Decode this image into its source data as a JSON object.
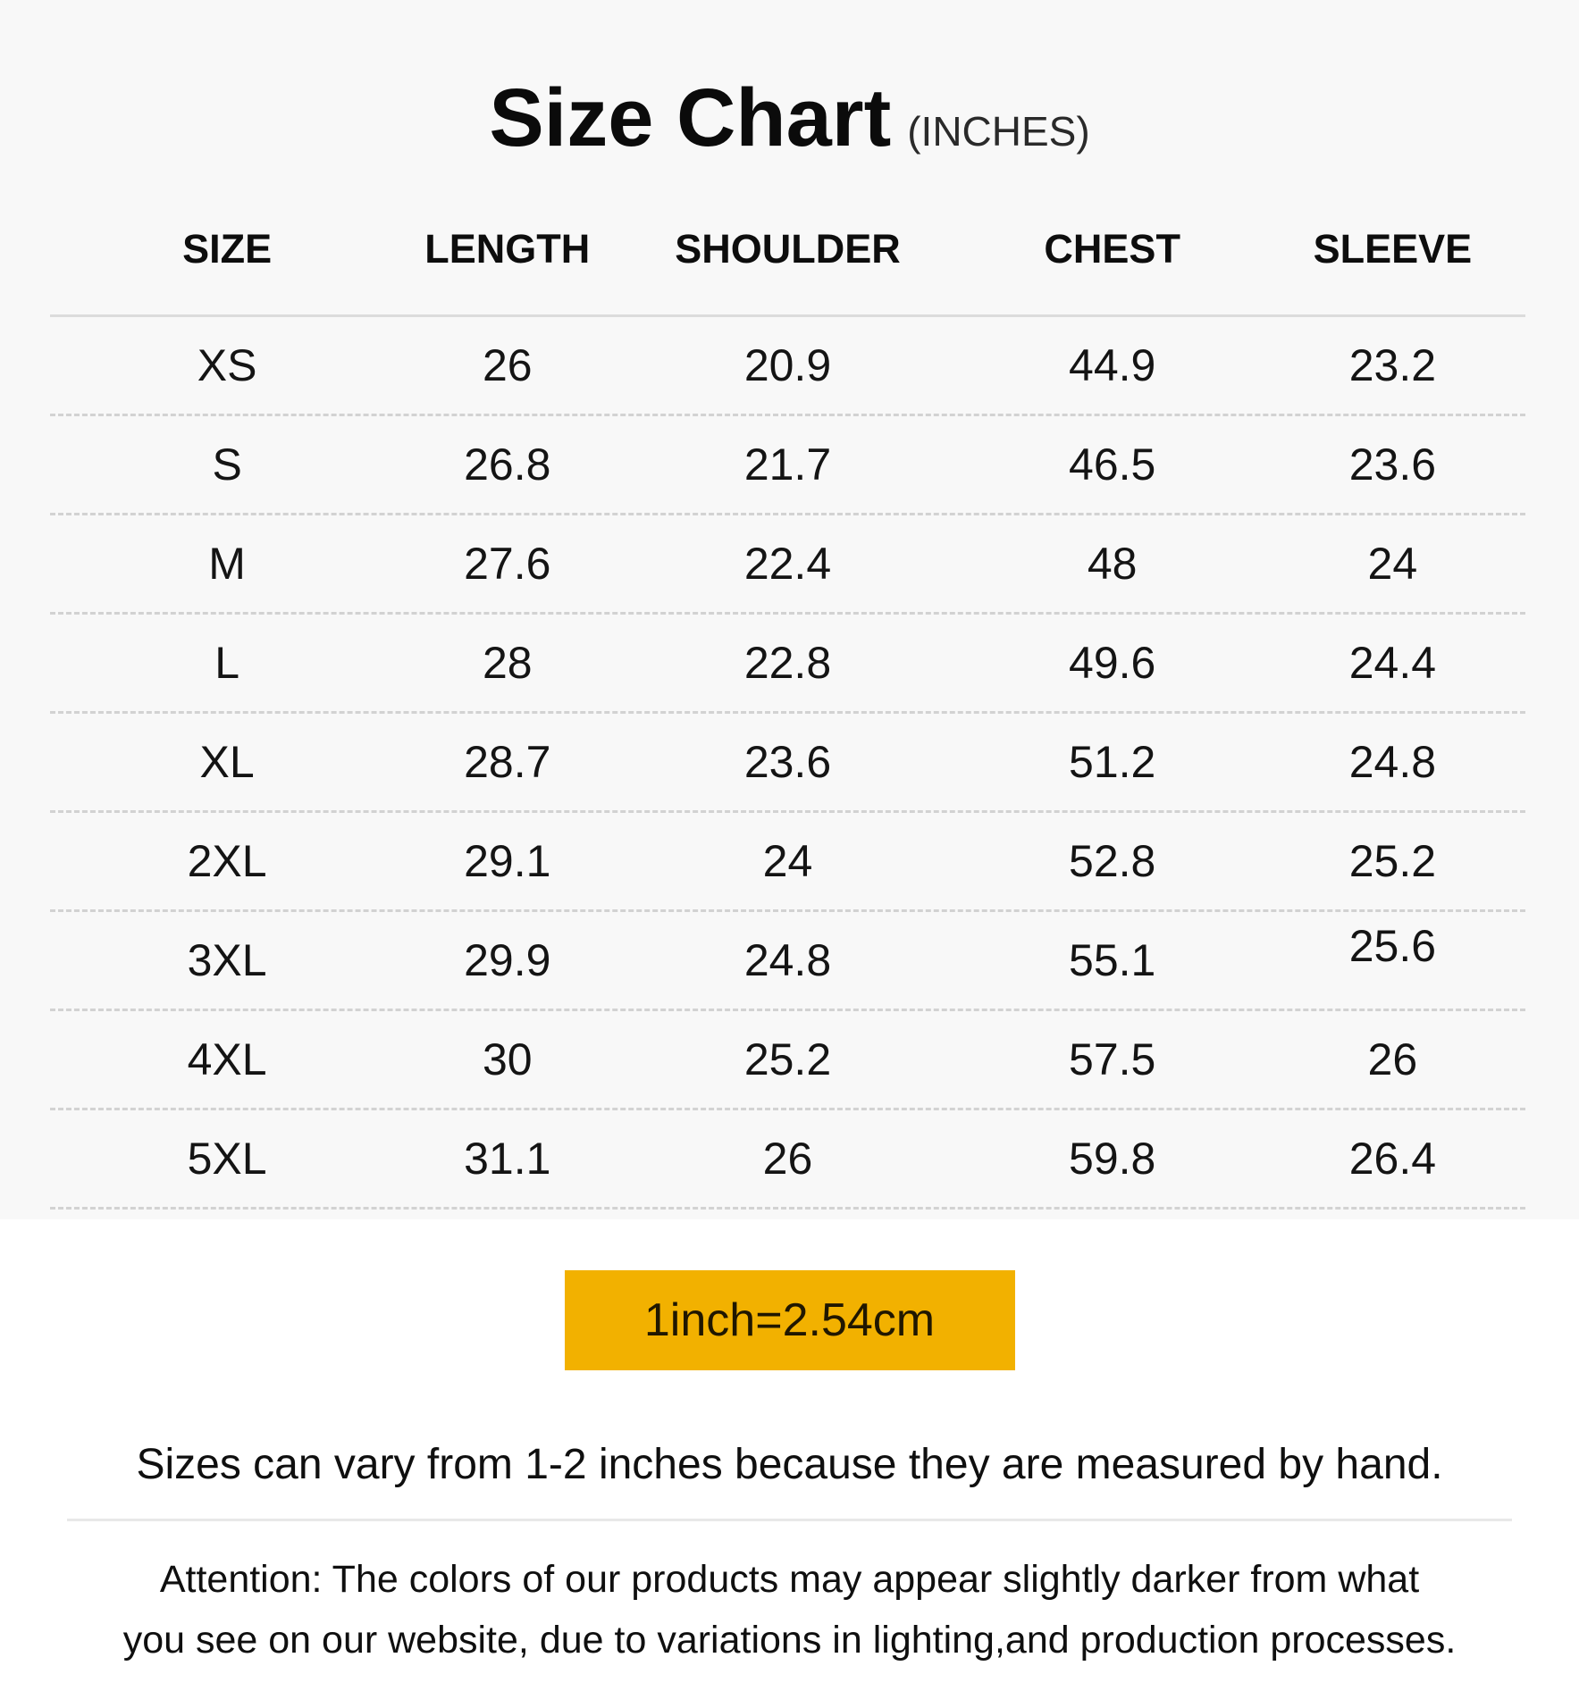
{
  "header": {
    "title": "Size Chart",
    "unit_label": "(INCHES)"
  },
  "chart_data": {
    "type": "table",
    "title": "Size Chart (INCHES)",
    "unit_note": "1inch=2.54cm",
    "columns": [
      "SIZE",
      "LENGTH",
      "SHOULDER",
      "CHEST",
      "SLEEVE"
    ],
    "rows": [
      [
        "XS",
        26,
        20.9,
        44.9,
        23.2
      ],
      [
        "S",
        26.8,
        21.7,
        46.5,
        23.6
      ],
      [
        "M",
        27.6,
        22.4,
        48,
        24
      ],
      [
        "L",
        28,
        22.8,
        49.6,
        24.4
      ],
      [
        "XL",
        28.7,
        23.6,
        51.2,
        24.8
      ],
      [
        "2XL",
        29.1,
        24,
        52.8,
        25.2
      ],
      [
        "3XL",
        29.9,
        24.8,
        55.1,
        25.6
      ],
      [
        "4XL",
        30,
        25.2,
        57.5,
        26
      ],
      [
        "5XL",
        31.1,
        26,
        59.8,
        26.4
      ]
    ]
  },
  "footer": {
    "unit_badge": "1inch=2.54cm",
    "note": "Sizes can vary from 1-2 inches because they are measured by hand.",
    "attention_line1": "Attention: The colors of our products may appear slightly darker from what",
    "attention_line2": "you see on our website, due to variations in lighting,and production processes."
  },
  "colors": {
    "badge_bg": "#F2B100",
    "panel_bg": "#F8F8F8",
    "text": "#111111",
    "header_line": "#DCDCDC",
    "row_dash_line": "#D2D2D2"
  }
}
